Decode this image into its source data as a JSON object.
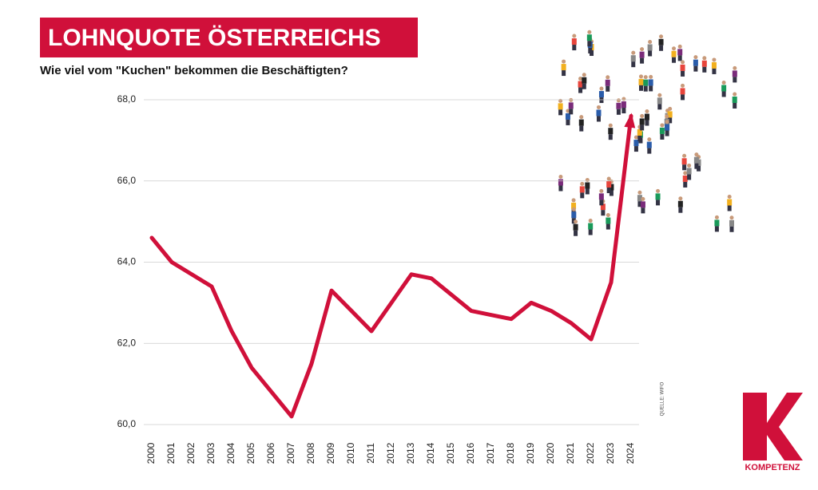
{
  "chart_data": {
    "type": "line",
    "title": "LOHNQUOTE ÖSTERREICHS",
    "subtitle": "Wie viel vom \"Kuchen\" bekommen die Beschäftigten?",
    "source": "QUELLE: WIFO",
    "brand_letter": "K",
    "brand": "KOMPETENZ",
    "categories": [
      "2000",
      "2001",
      "2002",
      "2003",
      "2004",
      "2005",
      "2006",
      "2007",
      "2008",
      "2009",
      "2010",
      "2011",
      "2012",
      "2013",
      "2014",
      "2015",
      "2016",
      "2017",
      "2018",
      "2019",
      "2020",
      "2021",
      "2022",
      "2023",
      "2024"
    ],
    "values": [
      64.6,
      64.0,
      63.7,
      63.4,
      62.3,
      61.4,
      60.8,
      60.2,
      61.5,
      63.3,
      62.8,
      62.3,
      63.0,
      63.7,
      63.6,
      63.2,
      62.8,
      62.7,
      62.6,
      63.0,
      62.8,
      62.5,
      62.1,
      63.5,
      67.6
    ],
    "color": "#d0103a",
    "ylim": [
      60,
      68
    ],
    "yticks": [
      {
        "value": 60,
        "label": "60,0"
      },
      {
        "value": 62,
        "label": "62,0"
      },
      {
        "value": 64,
        "label": "64,0"
      },
      {
        "value": 66,
        "label": "66,0"
      },
      {
        "value": 68,
        "label": "68,0"
      }
    ],
    "grid": true
  }
}
